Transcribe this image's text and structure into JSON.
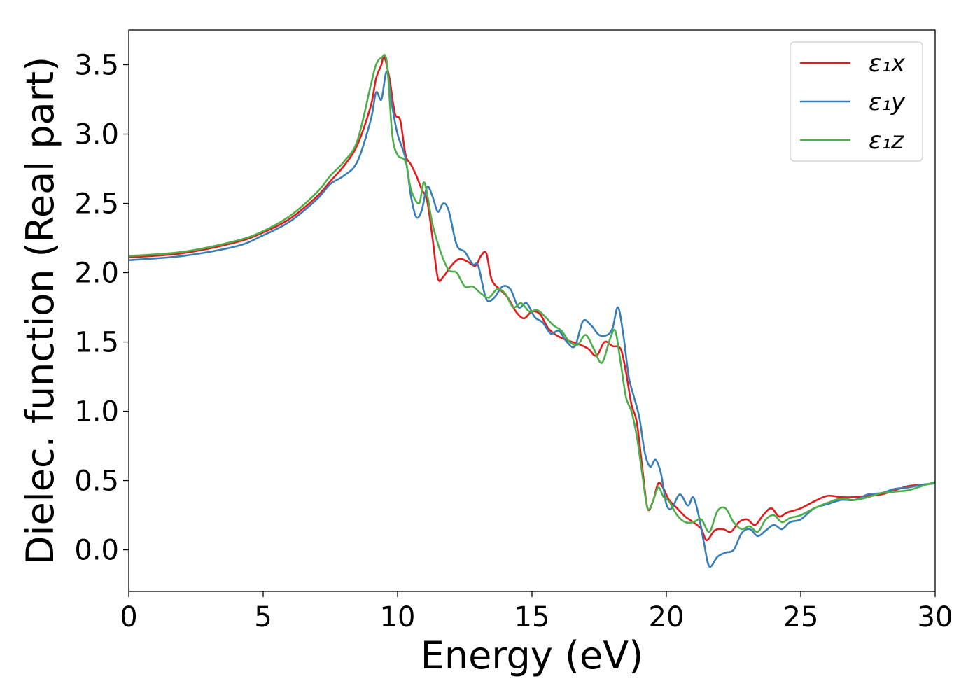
{
  "chart_data": {
    "type": "line",
    "xlabel": "Energy (eV)",
    "ylabel": "Dielec. function (Real part)",
    "xlim": [
      0,
      30
    ],
    "ylim": [
      -0.3,
      3.75
    ],
    "xticks": [
      0,
      5,
      10,
      15,
      20,
      25,
      30
    ],
    "xtick_labels": [
      "0",
      "5",
      "10",
      "15",
      "20",
      "25",
      "30"
    ],
    "yticks": [
      0.0,
      0.5,
      1.0,
      1.5,
      2.0,
      2.5,
      3.0,
      3.5
    ],
    "ytick_labels": [
      "0.0",
      "0.5",
      "1.0",
      "1.5",
      "2.0",
      "2.5",
      "3.0",
      "3.5"
    ],
    "grid": false,
    "legend_position": "top-right",
    "series": [
      {
        "name": "ε₁x",
        "color": "#e41a1c",
        "x": [
          0,
          2,
          4,
          5,
          6,
          7,
          7.5,
          8,
          8.5,
          9,
          9.2,
          9.4,
          9.5,
          9.7,
          9.9,
          10.1,
          10.3,
          10.5,
          10.7,
          10.9,
          11.1,
          11.3,
          11.5,
          11.7,
          12.0,
          12.3,
          12.6,
          12.9,
          13.1,
          13.3,
          13.5,
          13.8,
          14.1,
          14.4,
          14.7,
          15.0,
          15.3,
          15.6,
          15.9,
          16.2,
          16.5,
          16.8,
          17.1,
          17.4,
          17.7,
          18.0,
          18.3,
          18.5,
          18.7,
          18.9,
          19.1,
          19.3,
          19.5,
          19.7,
          19.9,
          20.1,
          20.4,
          20.7,
          21.0,
          21.3,
          21.5,
          21.8,
          22.1,
          22.4,
          22.7,
          23.0,
          23.3,
          23.6,
          23.9,
          24.2,
          24.5,
          25.0,
          25.5,
          26.0,
          26.5,
          27.0,
          27.5,
          28.0,
          28.5,
          29.0,
          29.5,
          30.0
        ],
        "y": [
          2.11,
          2.14,
          2.22,
          2.29,
          2.39,
          2.55,
          2.66,
          2.77,
          2.92,
          3.2,
          3.4,
          3.5,
          3.56,
          3.4,
          3.15,
          3.1,
          2.85,
          2.78,
          2.7,
          2.6,
          2.52,
          2.25,
          1.96,
          1.97,
          2.05,
          2.1,
          2.08,
          2.05,
          2.12,
          2.14,
          1.95,
          1.88,
          1.82,
          1.72,
          1.67,
          1.72,
          1.7,
          1.6,
          1.55,
          1.52,
          1.5,
          1.48,
          1.45,
          1.4,
          1.5,
          1.47,
          1.45,
          1.28,
          1.05,
          0.92,
          0.6,
          0.3,
          0.35,
          0.48,
          0.44,
          0.36,
          0.3,
          0.24,
          0.2,
          0.15,
          0.07,
          0.14,
          0.15,
          0.13,
          0.2,
          0.22,
          0.18,
          0.25,
          0.3,
          0.24,
          0.27,
          0.3,
          0.35,
          0.39,
          0.38,
          0.38,
          0.39,
          0.4,
          0.43,
          0.46,
          0.47,
          0.48
        ]
      },
      {
        "name": "ε₁y",
        "color": "#377eb8",
        "x": [
          0,
          2,
          4,
          5,
          6,
          7,
          7.5,
          8,
          8.5,
          9,
          9.2,
          9.4,
          9.6,
          9.8,
          10.0,
          10.3,
          10.5,
          10.7,
          10.9,
          11.1,
          11.3,
          11.5,
          11.7,
          11.9,
          12.2,
          12.5,
          12.8,
          13.0,
          13.3,
          13.6,
          13.9,
          14.2,
          14.5,
          14.8,
          15.1,
          15.4,
          15.7,
          16.0,
          16.3,
          16.6,
          16.9,
          17.2,
          17.5,
          17.8,
          18.0,
          18.2,
          18.4,
          18.6,
          18.8,
          19.0,
          19.2,
          19.4,
          19.6,
          19.8,
          20.0,
          20.2,
          20.5,
          20.8,
          21.0,
          21.2,
          21.4,
          21.6,
          21.9,
          22.2,
          22.5,
          22.8,
          23.1,
          23.4,
          23.7,
          24.0,
          24.3,
          24.6,
          25.0,
          25.5,
          26.0,
          26.5,
          27.0,
          27.5,
          28.0,
          28.5,
          29.0,
          29.5,
          30.0
        ],
        "y": [
          2.09,
          2.12,
          2.19,
          2.27,
          2.37,
          2.53,
          2.64,
          2.7,
          2.8,
          3.1,
          3.3,
          3.25,
          3.45,
          3.2,
          3.0,
          2.82,
          2.55,
          2.4,
          2.45,
          2.62,
          2.55,
          2.44,
          2.5,
          2.45,
          2.2,
          2.15,
          2.06,
          2.05,
          1.81,
          1.82,
          1.9,
          1.88,
          1.75,
          1.78,
          1.68,
          1.64,
          1.56,
          1.58,
          1.5,
          1.47,
          1.65,
          1.62,
          1.55,
          1.55,
          1.6,
          1.75,
          1.55,
          1.25,
          1.1,
          0.95,
          0.7,
          0.6,
          0.65,
          0.55,
          0.33,
          0.3,
          0.4,
          0.32,
          0.38,
          0.25,
          0.05,
          -0.12,
          -0.05,
          -0.02,
          0.0,
          0.12,
          0.15,
          0.1,
          0.14,
          0.18,
          0.15,
          0.2,
          0.22,
          0.3,
          0.33,
          0.36,
          0.36,
          0.4,
          0.41,
          0.44,
          0.45,
          0.47,
          0.48
        ]
      },
      {
        "name": "ε₁z",
        "color": "#4daf4a",
        "x": [
          0,
          2,
          4,
          5,
          6,
          7,
          7.5,
          8,
          8.5,
          9,
          9.2,
          9.4,
          9.6,
          9.8,
          10.0,
          10.3,
          10.5,
          10.8,
          11.0,
          11.3,
          11.6,
          11.9,
          12.2,
          12.5,
          12.8,
          13.1,
          13.4,
          13.7,
          14.0,
          14.3,
          14.6,
          14.9,
          15.2,
          15.5,
          15.8,
          16.1,
          16.4,
          16.7,
          17.0,
          17.3,
          17.6,
          17.9,
          18.1,
          18.3,
          18.5,
          18.7,
          18.9,
          19.1,
          19.3,
          19.5,
          19.7,
          19.9,
          20.1,
          20.4,
          20.7,
          21.0,
          21.3,
          21.6,
          21.9,
          22.2,
          22.5,
          22.8,
          23.1,
          23.4,
          23.7,
          24.0,
          24.3,
          24.6,
          25.0,
          25.5,
          26.0,
          26.5,
          27.0,
          27.5,
          28.0,
          28.5,
          29.0,
          29.5,
          30.0
        ],
        "y": [
          2.12,
          2.15,
          2.23,
          2.3,
          2.41,
          2.58,
          2.7,
          2.8,
          2.95,
          3.35,
          3.5,
          3.55,
          3.52,
          3.0,
          2.85,
          2.8,
          2.6,
          2.5,
          2.65,
          2.35,
          2.15,
          2.02,
          2.0,
          1.9,
          1.9,
          1.85,
          1.82,
          1.88,
          1.85,
          1.75,
          1.78,
          1.72,
          1.73,
          1.68,
          1.62,
          1.58,
          1.5,
          1.48,
          1.55,
          1.45,
          1.35,
          1.52,
          1.58,
          1.35,
          1.1,
          1.0,
          0.82,
          0.55,
          0.3,
          0.35,
          0.45,
          0.38,
          0.35,
          0.25,
          0.2,
          0.2,
          0.22,
          0.13,
          0.28,
          0.3,
          0.2,
          0.15,
          0.17,
          0.13,
          0.22,
          0.25,
          0.2,
          0.23,
          0.25,
          0.3,
          0.34,
          0.37,
          0.36,
          0.38,
          0.41,
          0.42,
          0.43,
          0.46,
          0.49
        ]
      }
    ]
  }
}
